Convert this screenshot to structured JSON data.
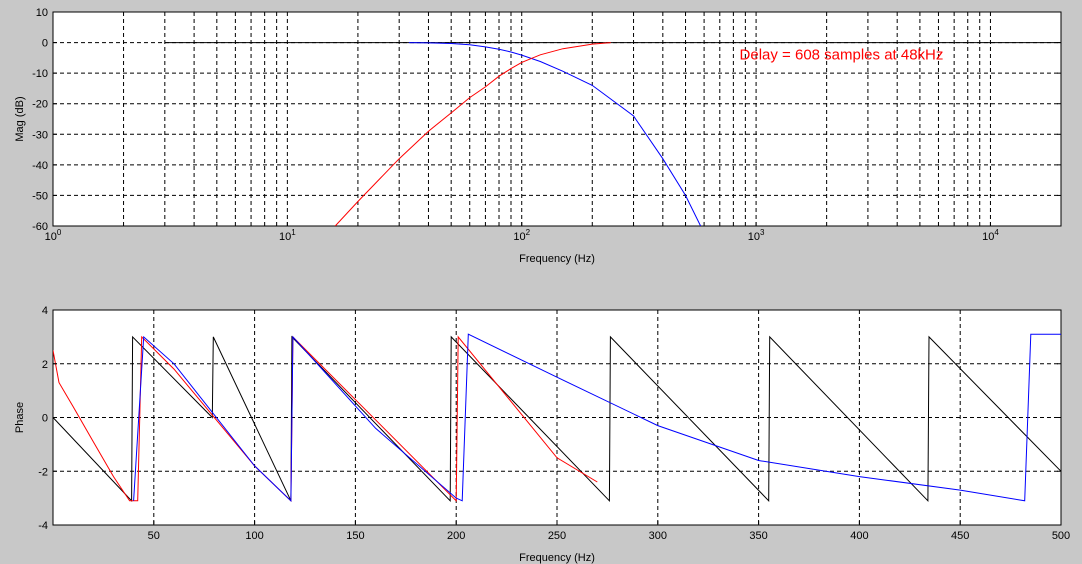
{
  "chart_data": [
    {
      "type": "line",
      "xscale": "log",
      "xlim": [
        1,
        20000
      ],
      "ylim": [
        -60,
        10
      ],
      "xlabel": "Frequency (Hz)",
      "ylabel": "Mag (dB)",
      "grid": true,
      "x_ticks": [
        {
          "value": 1,
          "label": "10",
          "exp": "0"
        },
        {
          "value": 10,
          "label": "10",
          "exp": "1"
        },
        {
          "value": 100,
          "label": "10",
          "exp": "2"
        },
        {
          "value": 1000,
          "label": "10",
          "exp": "3"
        },
        {
          "value": 10000,
          "label": "10",
          "exp": "4"
        }
      ],
      "y_ticks": [
        10,
        0,
        -10,
        -20,
        -30,
        -40,
        -50,
        -60
      ],
      "annotation": {
        "text": "Delay = 608 samples at 48kHz",
        "x": 850,
        "y": -5.5
      },
      "series": [
        {
          "color": "#000000",
          "x": [
            3,
            20000
          ],
          "y": [
            0,
            0
          ]
        },
        {
          "color": "#0000ff",
          "x": [
            33,
            40,
            50,
            60,
            70,
            80,
            90,
            100,
            120,
            150,
            200,
            300,
            400,
            500,
            580
          ],
          "y": [
            0,
            -0.1,
            -0.3,
            -0.7,
            -1.4,
            -2.2,
            -3.1,
            -4.1,
            -6.2,
            -9.4,
            -14,
            -24,
            -38,
            -50,
            -60
          ]
        },
        {
          "color": "#ff0000",
          "x": [
            16,
            20,
            30,
            40,
            50,
            60,
            70,
            80,
            90,
            100,
            120,
            150,
            200,
            240
          ],
          "y": [
            -60,
            -52,
            -38,
            -29,
            -23,
            -18,
            -14.5,
            -11,
            -8.5,
            -6.5,
            -4,
            -2,
            -0.5,
            0
          ]
        }
      ]
    },
    {
      "type": "line",
      "xlim": [
        0,
        500
      ],
      "ylim": [
        -4,
        4
      ],
      "xlabel": "Frequency (Hz)",
      "ylabel": "Phase",
      "grid": true,
      "x_ticks": [
        50,
        100,
        150,
        200,
        250,
        300,
        350,
        400,
        450,
        500
      ],
      "y_ticks": [
        4,
        2,
        0,
        -2,
        -4
      ],
      "series": [
        {
          "color": "#000000",
          "x": [
            0,
            39,
            39.5,
            79,
            79.5,
            118,
            118.5,
            197,
            197.5,
            276,
            276.5,
            355,
            355.5,
            434,
            434.5,
            500
          ],
          "y": [
            0,
            -3.1,
            3.0,
            0.0,
            3.0,
            -3.1,
            3.0,
            -3.1,
            3.0,
            -3.1,
            3.0,
            -3.1,
            3.0,
            -3.1,
            3.0,
            -2.0
          ]
        },
        {
          "color": "#ff0000",
          "x": [
            0,
            3,
            10,
            20,
            30,
            38,
            42,
            44,
            60,
            100,
            118,
            119,
            200,
            201,
            250,
            270
          ],
          "y": [
            2.5,
            1.3,
            0.4,
            -0.9,
            -2.2,
            -3.1,
            -3.1,
            3.0,
            1.8,
            -1.8,
            -3.1,
            3.0,
            -3.1,
            3.0,
            -1.5,
            -2.4
          ]
        },
        {
          "color": "#0000ff",
          "x": [
            40,
            45,
            60,
            100,
            118,
            119,
            160,
            200,
            203,
            206,
            250,
            300,
            350,
            400,
            450,
            482,
            485,
            500
          ],
          "y": [
            -3.1,
            3.0,
            2.0,
            -1.8,
            -3.1,
            3.0,
            -0.4,
            -3.0,
            -3.1,
            3.1,
            1.5,
            -0.3,
            -1.6,
            -2.2,
            -2.7,
            -3.1,
            3.1,
            3.1
          ]
        }
      ]
    }
  ]
}
